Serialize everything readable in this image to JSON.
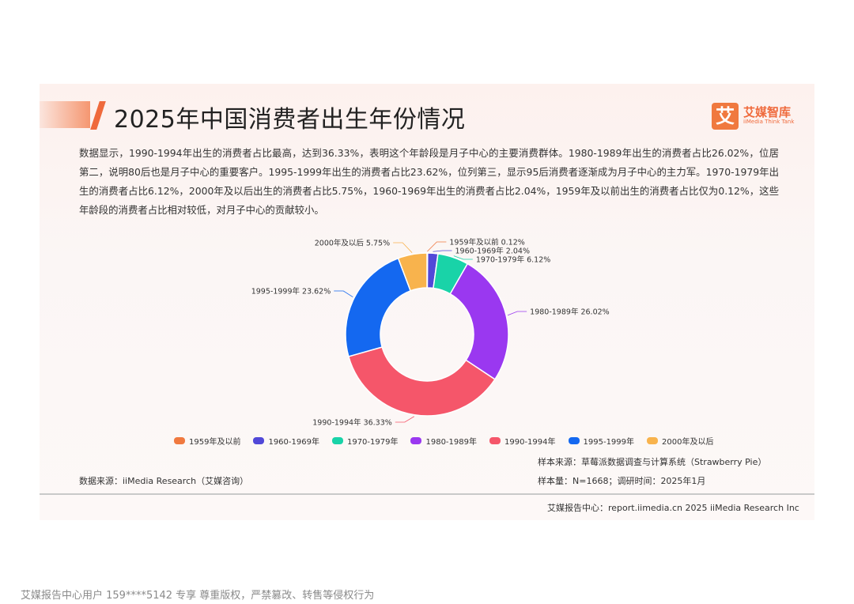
{
  "title": "2025年中国消费者出生年份情况",
  "logo": {
    "mark": "艾",
    "name_cn": "艾媒智库",
    "name_en": "iiMedia Think Tank"
  },
  "paragraph": "数据显示，1990-1994年出生的消费者占比最高，达到36.33%，表明这个年龄段是月子中心的主要消费群体。1980-1989年出生的消费者占比26.02%，位居第二，说明80后也是月子中心的重要客户。1995-1999年出生的消费者占比23.62%，位列第三，显示95后消费者逐渐成为月子中心的主力军。1970-1979年出生的消费者占比6.12%，2000年及以后出生的消费者占比5.75%，1960-1969年出生的消费者占比2.04%，1959年及以前出生的消费者占比仅为0.12%，这些年龄段的消费者占比相对较低，对月子中心的贡献较小。",
  "chart_data": {
    "type": "pie",
    "donut": true,
    "categories": [
      "1959年及以前",
      "1960-1969年",
      "1970-1979年",
      "1980-1989年",
      "1990-1994年",
      "1995-1999年",
      "2000年及以后"
    ],
    "values": [
      0.12,
      2.04,
      6.12,
      26.02,
      36.33,
      23.62,
      5.75
    ],
    "unit": "%",
    "colors": [
      "#f0793f",
      "#5148d8",
      "#19d3a8",
      "#9a38f0",
      "#f5566a",
      "#1468f0",
      "#f8b34d"
    ],
    "data_labels": [
      "1959年及以前 0.12%",
      "1960-1969年 2.04%",
      "1970-1979年 6.12%",
      "1980-1989年 26.02%",
      "1990-1994年 36.33%",
      "1995-1999年 23.62%",
      "2000年及以后 5.75%"
    ],
    "legend": "bottom"
  },
  "source_left": "数据来源：iiMedia Research（艾媒咨询）",
  "sample_source": "样本来源：草莓派数据调查与计算系统（Strawberry Pie）",
  "sample_size": "样本量：N=1668；调研时间：2025年1月",
  "footer": "艾媒报告中心：report.iimedia.cn 2025 iiMedia Research Inc",
  "watermark": "艾媒报告中心用户 159****5142 专享 尊重版权，严禁篡改、转售等侵权行为"
}
